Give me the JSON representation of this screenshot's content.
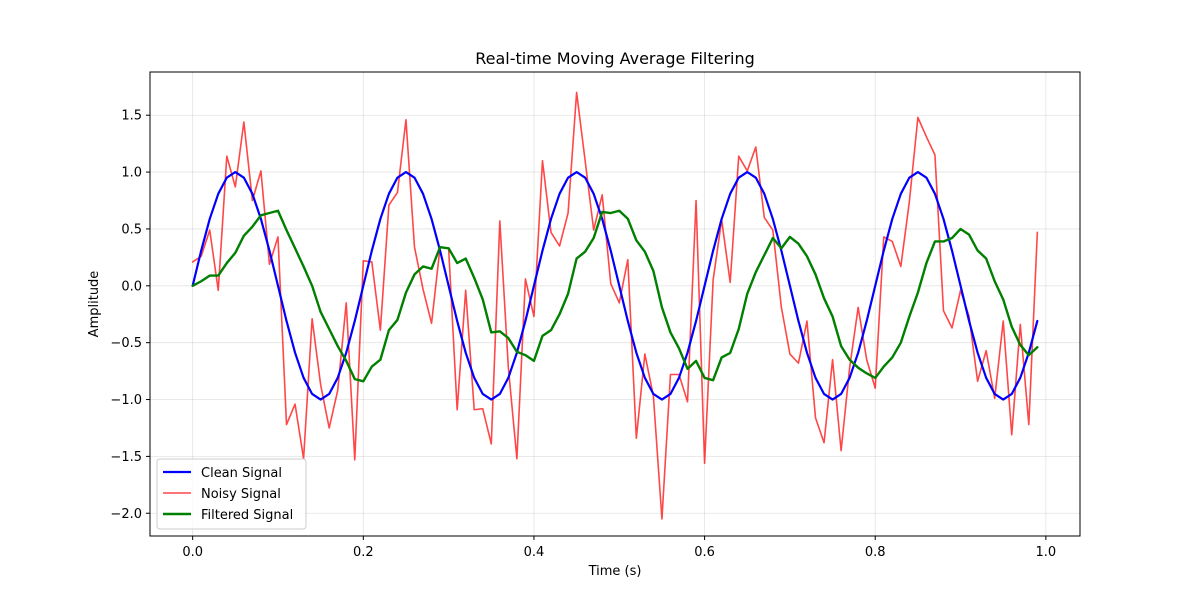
{
  "chart_data": {
    "type": "line",
    "title": "Real-time Moving Average Filtering",
    "xlabel": "Time (s)",
    "ylabel": "Amplitude",
    "xlim": [
      -0.05,
      1.04
    ],
    "ylim": [
      -2.2,
      1.88
    ],
    "xticks": [
      0.0,
      0.2,
      0.4,
      0.6,
      0.8,
      1.0
    ],
    "xtick_labels": [
      "0.0",
      "0.2",
      "0.4",
      "0.6",
      "0.8",
      "1.0"
    ],
    "yticks": [
      -2.0,
      -1.5,
      -1.0,
      -0.5,
      0.0,
      0.5,
      1.0,
      1.5
    ],
    "ytick_labels": [
      "−2.0",
      "−1.5",
      "−1.0",
      "−0.5",
      "0.0",
      "0.5",
      "1.0",
      "1.5"
    ],
    "grid": true,
    "legend_position": "lower-left",
    "x": [
      0.0,
      0.01,
      0.02,
      0.03,
      0.04,
      0.05,
      0.06,
      0.07,
      0.08,
      0.09,
      0.1,
      0.11,
      0.12,
      0.13,
      0.14,
      0.15,
      0.16,
      0.17,
      0.18,
      0.19,
      0.2,
      0.21,
      0.22,
      0.23,
      0.24,
      0.25,
      0.26,
      0.27,
      0.28,
      0.29,
      0.3,
      0.31,
      0.32,
      0.33,
      0.34,
      0.35,
      0.36,
      0.37,
      0.38,
      0.39,
      0.4,
      0.41,
      0.42,
      0.43,
      0.44,
      0.45,
      0.46,
      0.47,
      0.48,
      0.49,
      0.5,
      0.51,
      0.52,
      0.53,
      0.54,
      0.55,
      0.56,
      0.57,
      0.58,
      0.59,
      0.6,
      0.61,
      0.62,
      0.63,
      0.64,
      0.65,
      0.66,
      0.67,
      0.68,
      0.69,
      0.7,
      0.71,
      0.72,
      0.73,
      0.74,
      0.75,
      0.76,
      0.77,
      0.78,
      0.79,
      0.8,
      0.81,
      0.82,
      0.83,
      0.84,
      0.85,
      0.86,
      0.87,
      0.88,
      0.89,
      0.9,
      0.91,
      0.92,
      0.93,
      0.94,
      0.95,
      0.96,
      0.97,
      0.98,
      0.99
    ],
    "series": [
      {
        "name": "Clean Signal",
        "color": "#0000ff",
        "width": 2.2,
        "values": [
          0.0,
          0.309,
          0.588,
          0.809,
          0.951,
          1.0,
          0.951,
          0.809,
          0.588,
          0.309,
          0.0,
          -0.309,
          -0.588,
          -0.809,
          -0.951,
          -1.0,
          -0.951,
          -0.809,
          -0.588,
          -0.309,
          0.0,
          0.309,
          0.588,
          0.809,
          0.951,
          1.0,
          0.951,
          0.809,
          0.588,
          0.309,
          0.0,
          -0.309,
          -0.588,
          -0.809,
          -0.951,
          -1.0,
          -0.951,
          -0.809,
          -0.588,
          -0.309,
          0.0,
          0.309,
          0.588,
          0.809,
          0.951,
          1.0,
          0.951,
          0.809,
          0.588,
          0.309,
          0.0,
          -0.309,
          -0.588,
          -0.809,
          -0.951,
          -1.0,
          -0.951,
          -0.809,
          -0.588,
          -0.309,
          0.0,
          0.309,
          0.588,
          0.809,
          0.951,
          1.0,
          0.951,
          0.809,
          0.588,
          0.309,
          0.0,
          -0.309,
          -0.588,
          -0.809,
          -0.951,
          -1.0,
          -0.951,
          -0.809,
          -0.588,
          -0.309,
          0.0,
          0.309,
          0.588,
          0.809,
          0.951,
          1.0,
          0.951,
          0.809,
          0.588,
          0.309,
          0.0,
          -0.309,
          -0.588,
          -0.809,
          -0.951,
          -1.0,
          -0.951,
          -0.809,
          -0.588,
          -0.309
        ]
      },
      {
        "name": "Noisy Signal",
        "color": "#ff0000",
        "width": 1.6,
        "opacity": 0.72,
        "values": [
          0.21,
          0.26,
          0.49,
          -0.04,
          1.14,
          0.87,
          1.44,
          0.75,
          1.01,
          0.19,
          0.43,
          -1.22,
          -1.04,
          -1.52,
          -0.29,
          -0.87,
          -1.25,
          -0.92,
          -0.15,
          -1.53,
          0.22,
          0.21,
          -0.39,
          0.71,
          0.82,
          1.46,
          0.34,
          -0.03,
          -0.33,
          0.34,
          0.33,
          -1.09,
          -0.04,
          -1.09,
          -1.08,
          -1.39,
          0.57,
          -0.72,
          -1.52,
          0.06,
          -0.27,
          1.1,
          0.47,
          0.35,
          0.64,
          1.7,
          1.1,
          0.49,
          0.8,
          0.02,
          -0.15,
          0.23,
          -1.34,
          -0.6,
          -0.97,
          -2.05,
          -0.78,
          -0.78,
          -1.02,
          0.75,
          -1.56,
          0.05,
          0.58,
          0.03,
          1.14,
          1.01,
          1.22,
          0.6,
          0.49,
          -0.19,
          -0.6,
          -0.68,
          -0.31,
          -1.16,
          -1.38,
          -0.65,
          -1.45,
          -0.72,
          -0.19,
          -0.65,
          -0.9,
          0.43,
          0.39,
          0.17,
          0.74,
          1.48,
          1.31,
          1.15,
          -0.22,
          -0.37,
          -0.04,
          -0.27,
          -0.84,
          -0.57,
          -0.99,
          -0.31,
          -1.31,
          -0.34,
          -1.22,
          0.47
        ]
      },
      {
        "name": "Filtered Signal",
        "color": "#008000",
        "width": 2.4,
        "values": [
          0.0,
          0.04,
          0.09,
          0.09,
          0.2,
          0.29,
          0.44,
          0.52,
          0.62,
          0.64,
          0.66,
          0.49,
          0.33,
          0.17,
          0.0,
          -0.23,
          -0.38,
          -0.53,
          -0.66,
          -0.82,
          -0.84,
          -0.71,
          -0.65,
          -0.39,
          -0.3,
          -0.06,
          0.1,
          0.17,
          0.15,
          0.34,
          0.33,
          0.2,
          0.24,
          0.07,
          -0.12,
          -0.41,
          -0.4,
          -0.46,
          -0.58,
          -0.61,
          -0.66,
          -0.44,
          -0.39,
          -0.25,
          -0.07,
          0.24,
          0.3,
          0.42,
          0.65,
          0.64,
          0.66,
          0.59,
          0.4,
          0.3,
          0.13,
          -0.19,
          -0.41,
          -0.55,
          -0.73,
          -0.66,
          -0.81,
          -0.83,
          -0.63,
          -0.59,
          -0.38,
          -0.07,
          0.12,
          0.27,
          0.42,
          0.33,
          0.43,
          0.37,
          0.26,
          0.1,
          -0.11,
          -0.27,
          -0.53,
          -0.65,
          -0.72,
          -0.77,
          -0.81,
          -0.71,
          -0.63,
          -0.5,
          -0.27,
          -0.06,
          0.2,
          0.39,
          0.39,
          0.42,
          0.5,
          0.45,
          0.31,
          0.24,
          0.04,
          -0.12,
          -0.36,
          -0.52,
          -0.61,
          -0.54
        ]
      }
    ]
  }
}
